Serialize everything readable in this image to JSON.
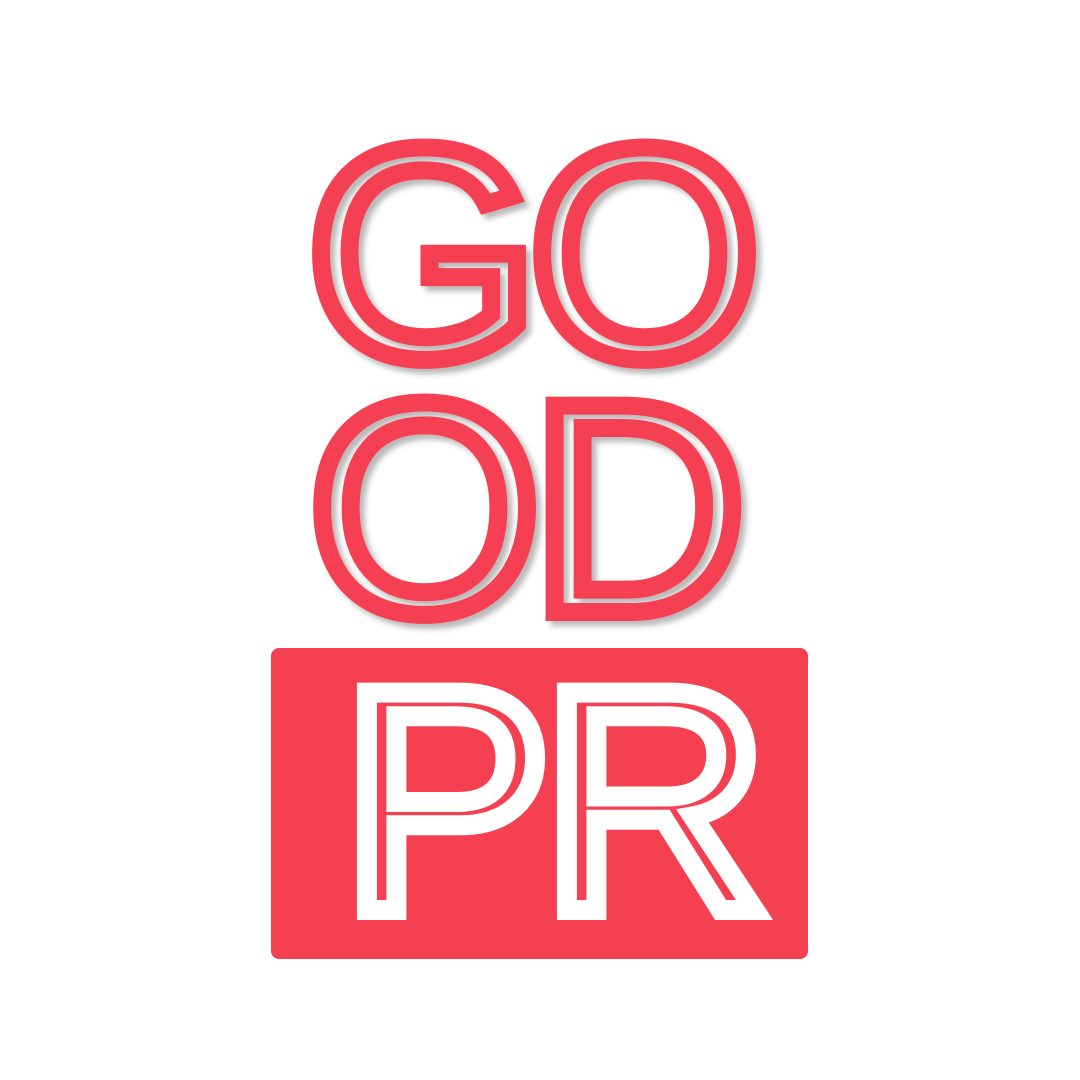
{
  "logo": {
    "line1": [
      "G",
      "O"
    ],
    "line2": [
      "O",
      "D"
    ],
    "badge_letters": [
      "P",
      "R"
    ],
    "accent_color": "#f54052",
    "badge_text_color": "#ffffff"
  }
}
